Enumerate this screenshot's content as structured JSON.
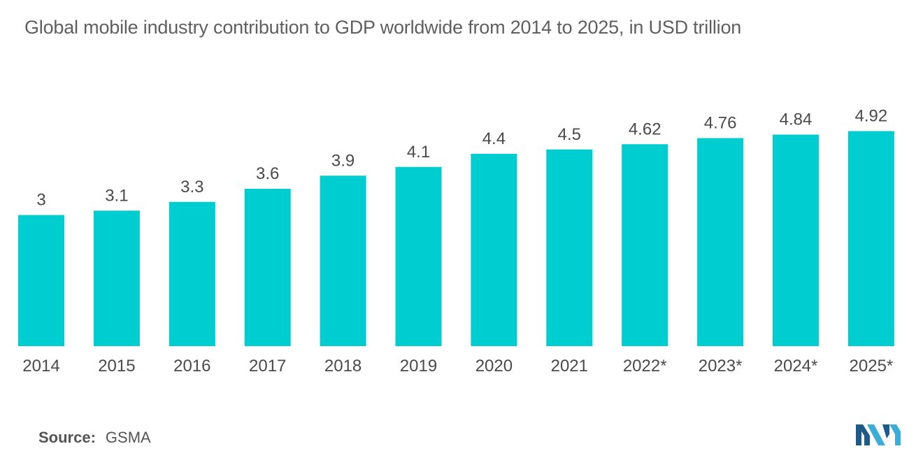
{
  "chart_data": {
    "type": "bar",
    "title": "Global mobile industry contribution to GDP worldwide from 2014 to 2025, in USD trillion",
    "categories": [
      "2014",
      "2015",
      "2016",
      "2017",
      "2018",
      "2019",
      "2020",
      "2021",
      "2022*",
      "2023*",
      "2024*",
      "2025*"
    ],
    "values": [
      3,
      3.1,
      3.3,
      3.6,
      3.9,
      4.1,
      4.4,
      4.5,
      4.62,
      4.76,
      4.84,
      4.92
    ],
    "value_labels": [
      "3",
      "3.1",
      "3.3",
      "3.6",
      "3.9",
      "4.1",
      "4.4",
      "4.5",
      "4.62",
      "4.76",
      "4.84",
      "4.92"
    ],
    "xlabel": "",
    "ylabel": "",
    "ylim": [
      0,
      5
    ],
    "grid": false,
    "bar_color": "#00cdd0"
  },
  "source": {
    "label": "Source:",
    "value": "GSMA"
  },
  "colors": {
    "title": "#5f5f5f",
    "labels": "#4a4a4a",
    "logo_dark": "#1c5a8a",
    "logo_light": "#3aaed8"
  }
}
